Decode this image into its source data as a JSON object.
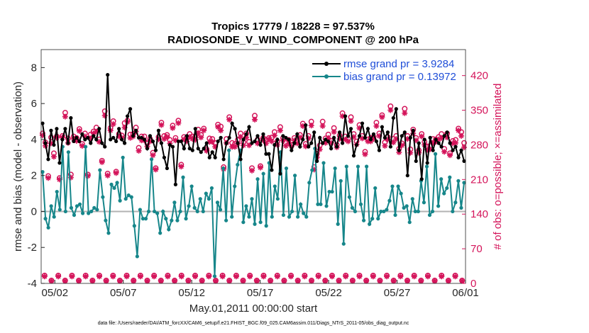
{
  "chart_data": {
    "type": "line",
    "title": "Tropics 17779 / 18228 = 97.537%",
    "subtitle": "RADIOSONDE_V_WIND_COMPONENT @ 200 hPa",
    "xlabel": "May.01,2011 00:00:00 start",
    "ylabel": "rmse and bias (model - observation)",
    "y2label": "# of obs: o=possible; ×=assimilated",
    "footnote": "data file: /Users/raeder/DAI/ATM_forcXX/CAM6_setup/f.e21.FHIST_BGC.f09_025.CAM6assim.011/Diags_NTrS_2011-05/obs_diag_output.nc",
    "xlim": [
      0.5,
      31.5
    ],
    "ylim": [
      -4,
      9
    ],
    "y2lim": [
      0,
      472.5
    ],
    "x_ticks": [
      1.5,
      6.5,
      11.5,
      16.5,
      21.5,
      26.5,
      31.5
    ],
    "x_tick_labels": [
      "05/02",
      "05/07",
      "05/12",
      "05/17",
      "05/22",
      "05/27",
      "06/01"
    ],
    "y_ticks": [
      -4,
      -2,
      0,
      2,
      4,
      6,
      8
    ],
    "y_tick_labels": [
      "-4",
      "-2",
      "0",
      "2",
      "4",
      "6",
      "8"
    ],
    "y2_ticks": [
      0,
      70,
      140,
      210,
      280,
      350,
      420
    ],
    "y2_tick_labels": [
      "0",
      "70",
      "140",
      "210",
      "280",
      "350",
      "420"
    ],
    "zero_line": 0,
    "colors": {
      "rmse": "#000000",
      "bias": "#16868a",
      "obs": "#d4145a",
      "legend_text": "#1f4ed8",
      "zero_line": "#b3b3b3"
    },
    "series": [
      {
        "name": "rmse grand pr = 3.9284",
        "axis": "left",
        "marker": "dot",
        "values": [
          4.9,
          3.8,
          2.9,
          4.5,
          3.7,
          4.6,
          2.7,
          4.0,
          4.6,
          3.8,
          5.2,
          3.9,
          4.1,
          3.9,
          4.3,
          4.0,
          4.1,
          3.8,
          4.2,
          4.0,
          4.6,
          3.8,
          3.6,
          7.6,
          4.0,
          4.1,
          3.9,
          4.6,
          4.0,
          3.8,
          5.3,
          5.7,
          4.2,
          4.5,
          4.1,
          4.1,
          4.0,
          3.5,
          4.2,
          3.9,
          3.4,
          4.5,
          3.8,
          3.0,
          2.4,
          3.7,
          3.6,
          1.5,
          3.9,
          3.9,
          3.5,
          4.2,
          3.5,
          3.4,
          4.6,
          3.5,
          3.3,
          3.5,
          3.8,
          3.0,
          3.3,
          3.0,
          3.9,
          4.1,
          2.9,
          3.8,
          4.1,
          4.9,
          4.6,
          3.8,
          2.9,
          4.0,
          4.3,
          4.7,
          3.8,
          3.9,
          4.2,
          3.7,
          4.3,
          3.2,
          3.2,
          2.3,
          3.7,
          4.0,
          2.1,
          4.2,
          4.1,
          4.0,
          3.4,
          3.8,
          4.3,
          3.6,
          4.0,
          4.8,
          3.6,
          3.8,
          4.4,
          2.8,
          4.1,
          3.8,
          4.0,
          3.9,
          3.5,
          4.1,
          3.6,
          4.4,
          3.8,
          5.3,
          4.2,
          4.6,
          3.1,
          3.7,
          4.2,
          4.9,
          4.1,
          4.6,
          4.0,
          4.3,
          3.9,
          3.4,
          4.7,
          4.1,
          4.4,
          3.6,
          5.2,
          5.7,
          3.4,
          4.2,
          4.4,
          2.0,
          4.1,
          4.5,
          2.8,
          3.8,
          1.8,
          4.0,
          2.7,
          4.1,
          3.4,
          4.0,
          3.8,
          3.6,
          4.2,
          4.4,
          3.8,
          3.4,
          3.6,
          3.0,
          3.4,
          2.8
        ]
      },
      {
        "name": "bias grand pr = 0.13972",
        "axis": "left",
        "marker": "dot",
        "values": [
          2.2,
          -0.4,
          -0.9,
          0.3,
          -0.3,
          1.1,
          0.1,
          3.6,
          0.0,
          3.3,
          0.2,
          -0.2,
          0.3,
          0.4,
          -0.1,
          3.6,
          -0.1,
          0.0,
          0.2,
          0.1,
          2.3,
          0.8,
          -0.5,
          -1.2,
          1.5,
          1.3,
          1.6,
          0.6,
          3.0,
          0.7,
          0.9,
          0.8,
          -0.8,
          -2.5,
          0.1,
          -0.4,
          -0.4,
          0.0,
          2.9,
          0.0,
          -0.1,
          -1.2,
          0.0,
          -0.4,
          -1.0,
          -0.5,
          0.5,
          -0.5,
          0.0,
          1.9,
          -0.4,
          0.3,
          1.4,
          0.2,
          0.0,
          0.7,
          0.0,
          1.0,
          0.7,
          1.3,
          -3.6,
          0.5,
          0.1,
          2.4,
          -0.5,
          3.4,
          -0.3,
          1.4,
          2.6,
          3.4,
          -0.6,
          0.3,
          -0.3,
          0.7,
          -0.7,
          1.8,
          -0.6,
          2.1,
          -0.8,
          2.7,
          -0.3,
          1.4,
          0.7,
          3.3,
          -0.2,
          2.4,
          -0.3,
          0.0,
          2.0,
          -0.3,
          0.4,
          -0.1,
          -0.3,
          1.6,
          2.3,
          3.5,
          0.4,
          0.4,
          2.7,
          0.3,
          1.1,
          1.1,
          2.4,
          -0.7,
          1.7,
          -1.8,
          2.5,
          0.8,
          0.2,
          0.0,
          2.5,
          0.4,
          -0.5,
          2.5,
          -0.7,
          -0.4,
          1.3,
          -0.4,
          0.0,
          0.0,
          0.1,
          0.6,
          1.4,
          -0.2,
          1.4,
          1.0,
          0.2,
          0.3,
          -0.6,
          0.7,
          0.0,
          0.0,
          1.7,
          0.5,
          2.5,
          -0.2,
          0.0,
          3.2,
          0.3,
          1.8,
          1.0,
          1.3,
          1.9,
          0.0,
          0.5,
          1.7,
          0.2,
          1.6
        ]
      },
      {
        "name": "obs possible",
        "axis": "right",
        "marker": "circle",
        "values": [
          303,
          285,
          217,
          295,
          263,
          297,
          213,
          298,
          345,
          293,
          220,
          297,
          294,
          312,
          282,
          303,
          220,
          301,
          307,
          315,
          291,
          248,
          348,
          222,
          314,
          328,
          226,
          302,
          299,
          324,
          329,
          301,
          302,
          315,
          274,
          297,
          297,
          283,
          292,
          264,
          233,
          296,
          325,
          298,
          300,
          290,
          319,
          294,
          329,
          240,
          296,
          295,
          302,
          297,
          297,
          311,
          300,
          313,
          271,
          293,
          292,
          284,
          321,
          317,
          235,
          292,
          336,
          284,
          282,
          290,
          303,
          285,
          303,
          286,
          233,
          339,
          291,
          237,
          294,
          290,
          294,
          295,
          306,
          287,
          316,
          294,
          284,
          290,
          280,
          294,
          287,
          300,
          323,
          282,
          298,
          327,
          235,
          262,
          279,
          327,
          293,
          301,
          288,
          314,
          280,
          299,
          344,
          297,
          292,
          336,
          302,
          287,
          320,
          298,
          266,
          291,
          294,
          296,
          325,
          303,
          340,
          285,
          296,
          358,
          292,
          298,
          272,
          283,
          353,
          298,
          271,
          311,
          294,
          269,
          302,
          286,
          277,
          278,
          292,
          291,
          296,
          302,
          272,
          303,
          263,
          288,
          290,
          313,
          306,
          284
        ]
      },
      {
        "name": "obs assimilated",
        "axis": "right",
        "marker": "asterisk",
        "values": [
          299,
          278,
          213,
          283,
          256,
          294,
          210,
          295,
          337,
          284,
          214,
          292,
          288,
          308,
          278,
          297,
          217,
          293,
          303,
          307,
          286,
          245,
          339,
          218,
          309,
          322,
          223,
          297,
          294,
          315,
          326,
          294,
          297,
          307,
          268,
          289,
          289,
          277,
          287,
          259,
          230,
          291,
          320,
          292,
          296,
          283,
          314,
          289,
          324,
          236,
          291,
          287,
          296,
          292,
          290,
          304,
          295,
          309,
          268,
          286,
          286,
          276,
          316,
          309,
          231,
          284,
          331,
          276,
          276,
          283,
          296,
          279,
          295,
          279,
          228,
          331,
          283,
          234,
          289,
          283,
          291,
          287,
          299,
          280,
          309,
          289,
          278,
          283,
          277,
          289,
          283,
          295,
          318,
          277,
          293,
          319,
          230,
          255,
          271,
          318,
          284,
          294,
          284,
          306,
          275,
          292,
          338,
          291,
          287,
          328,
          296,
          281,
          314,
          293,
          261,
          287,
          287,
          292,
          318,
          298,
          336,
          278,
          291,
          350,
          285,
          292,
          265,
          279,
          344,
          292,
          264,
          303,
          289,
          264,
          297,
          280,
          270,
          271,
          284,
          286,
          291,
          294,
          266,
          295,
          259,
          283,
          284,
          309,
          298,
          275
        ]
      },
      {
        "name": "bottom obs possible",
        "axis": "right",
        "marker": "circle",
        "values": [
          16,
          6,
          16,
          6,
          16,
          6,
          16,
          6,
          16,
          6,
          16,
          6,
          16,
          6,
          16,
          6,
          16,
          6,
          16,
          6,
          16,
          6,
          16,
          6,
          16,
          6,
          16,
          6,
          16,
          6,
          16,
          6,
          16,
          6,
          16,
          6,
          16,
          6,
          16,
          6,
          16,
          6,
          16,
          6,
          16,
          6,
          16,
          6,
          16,
          6,
          16,
          6,
          16,
          6,
          16,
          6,
          16,
          6,
          16,
          6,
          16,
          6
        ]
      },
      {
        "name": "bottom obs assimilated",
        "axis": "right",
        "marker": "asterisk",
        "values": [
          14,
          5,
          14,
          5,
          14,
          5,
          14,
          5,
          14,
          5,
          14,
          5,
          14,
          5,
          14,
          5,
          14,
          5,
          14,
          5,
          14,
          5,
          14,
          5,
          14,
          5,
          14,
          5,
          14,
          5,
          14,
          5,
          14,
          5,
          14,
          5,
          14,
          5,
          14,
          5,
          14,
          5,
          14,
          5,
          14,
          5,
          14,
          5,
          14,
          5,
          14,
          5,
          14,
          5,
          14,
          5,
          14,
          5,
          14,
          5,
          14,
          5
        ]
      }
    ],
    "legend": [
      "rmse grand pr = 3.9284",
      "bias grand pr = 0.13972"
    ],
    "legend_position": "top-right"
  }
}
